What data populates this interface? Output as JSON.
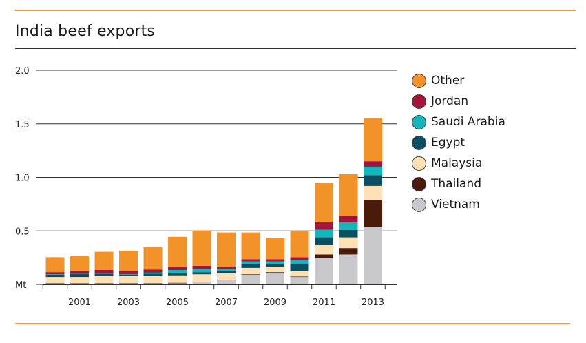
{
  "chart_data": {
    "type": "bar",
    "stacked": true,
    "title": "India beef exports",
    "ylabel": "Mt",
    "xlabel": "",
    "ylim": [
      0,
      2.0
    ],
    "y_ticks": [
      {
        "value": 0,
        "label": "Mt"
      },
      {
        "value": 0.5,
        "label": "0.5"
      },
      {
        "value": 1.0,
        "label": "1.0"
      },
      {
        "value": 1.5,
        "label": "1.5"
      },
      {
        "value": 2.0,
        "label": "2.0"
      }
    ],
    "categories": [
      "2000",
      "2001",
      "2002",
      "2003",
      "2004",
      "2005",
      "2006",
      "2007",
      "2008",
      "2009",
      "2010",
      "2011",
      "2012",
      "2013"
    ],
    "x_tick_labels": [
      "2001",
      "2003",
      "2005",
      "2007",
      "2009",
      "2011",
      "2013"
    ],
    "legend_position": "right",
    "series": [
      {
        "name": "Vietnam",
        "color": "#c8c8ca",
        "values": [
          0.005,
          0.005,
          0.005,
          0.005,
          0.005,
          0.01,
          0.02,
          0.04,
          0.09,
          0.11,
          0.07,
          0.25,
          0.28,
          0.54
        ]
      },
      {
        "name": "Thailand",
        "color": "#4a1a0a",
        "values": [
          0.005,
          0.005,
          0.005,
          0.005,
          0.005,
          0.005,
          0.005,
          0.005,
          0.005,
          0.005,
          0.005,
          0.03,
          0.06,
          0.25
        ]
      },
      {
        "name": "Malaysia",
        "color": "#fde0b4",
        "values": [
          0.06,
          0.06,
          0.07,
          0.07,
          0.07,
          0.07,
          0.07,
          0.06,
          0.06,
          0.05,
          0.05,
          0.09,
          0.1,
          0.13
        ]
      },
      {
        "name": "Egypt",
        "color": "#0b4f63",
        "values": [
          0.02,
          0.03,
          0.02,
          0.01,
          0.02,
          0.02,
          0.02,
          0.02,
          0.04,
          0.03,
          0.07,
          0.07,
          0.07,
          0.1
        ]
      },
      {
        "name": "Saudi Arabia",
        "color": "#12b6bb",
        "values": [
          0.005,
          0.005,
          0.005,
          0.005,
          0.01,
          0.03,
          0.03,
          0.02,
          0.02,
          0.02,
          0.03,
          0.07,
          0.07,
          0.08
        ]
      },
      {
        "name": "Jordan",
        "color": "#a5143a",
        "values": [
          0.02,
          0.02,
          0.03,
          0.03,
          0.03,
          0.03,
          0.03,
          0.02,
          0.02,
          0.02,
          0.03,
          0.07,
          0.06,
          0.05
        ]
      },
      {
        "name": "Other",
        "color": "#f4922a",
        "values": [
          0.14,
          0.14,
          0.17,
          0.19,
          0.21,
          0.28,
          0.33,
          0.32,
          0.25,
          0.2,
          0.24,
          0.37,
          0.39,
          0.4
        ]
      }
    ]
  }
}
